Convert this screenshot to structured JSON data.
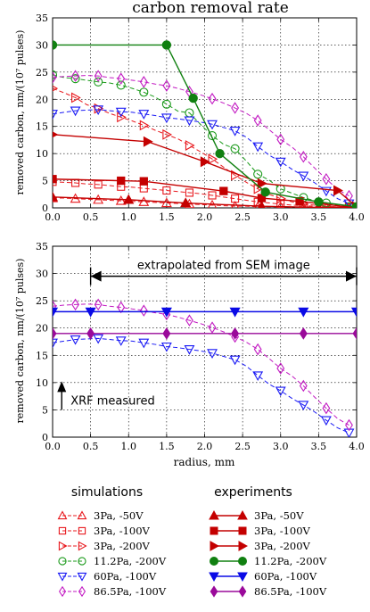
{
  "chart_data": [
    {
      "type": "line",
      "title": "carbon removal rate",
      "xlabel": "",
      "ylabel": "removed carbon, nm/(10⁷ pulses)",
      "xlim": [
        0,
        4.0
      ],
      "ylim": [
        0,
        35
      ],
      "xticks": [
        "0.0",
        "0.5",
        "1.0",
        "1.5",
        "2.0",
        "2.5",
        "3.0",
        "3.5",
        "4.0"
      ],
      "yticks": [
        "0",
        "5",
        "10",
        "15",
        "20",
        "25",
        "30",
        "35"
      ],
      "grid": true,
      "series": [
        {
          "name": "3Pa, -50V",
          "kind": "simulation",
          "color": "#e8191e",
          "marker": "triangle",
          "x": [
            0.0,
            0.15,
            0.3,
            0.45,
            0.6,
            0.75,
            0.9,
            1.05,
            1.2,
            1.35,
            1.5,
            1.65,
            1.8,
            1.95,
            2.1,
            2.25,
            2.4,
            2.55,
            2.7,
            2.85,
            3.0,
            3.15,
            3.3,
            3.45,
            3.6,
            3.75,
            3.9
          ],
          "y": [
            1.8,
            1.8,
            1.7,
            1.6,
            1.5,
            1.4,
            1.3,
            1.2,
            1.1,
            1.0,
            0.9,
            0.8,
            0.7,
            0.6,
            0.5,
            0.4,
            0.3,
            0.3,
            0.2,
            0.2,
            0.2,
            0.1,
            0.1,
            0.1,
            0.1,
            0.1,
            0.1
          ]
        },
        {
          "name": "3Pa, -100V",
          "kind": "simulation",
          "color": "#e8191e",
          "marker": "square",
          "x": [
            0.0,
            0.15,
            0.3,
            0.45,
            0.6,
            0.75,
            0.9,
            1.05,
            1.2,
            1.35,
            1.5,
            1.65,
            1.8,
            1.95,
            2.1,
            2.25,
            2.4,
            2.55,
            2.7,
            2.85,
            3.0,
            3.15,
            3.3,
            3.45,
            3.6,
            3.75,
            3.9
          ],
          "y": [
            4.8,
            4.7,
            4.6,
            4.4,
            4.3,
            4.1,
            3.9,
            3.8,
            3.6,
            3.4,
            3.2,
            3.0,
            2.8,
            2.6,
            2.3,
            2.0,
            1.7,
            1.4,
            1.1,
            0.9,
            0.7,
            0.5,
            0.4,
            0.3,
            0.2,
            0.2,
            0.1
          ]
        },
        {
          "name": "3Pa, -200V",
          "kind": "simulation",
          "color": "#e8191e",
          "marker": "triangle-right",
          "x": [
            0.0,
            0.15,
            0.3,
            0.45,
            0.6,
            0.75,
            0.9,
            1.05,
            1.2,
            1.35,
            1.5,
            1.65,
            1.8,
            1.95,
            2.1,
            2.25,
            2.4,
            2.55,
            2.7,
            2.85,
            3.0,
            3.15,
            3.3,
            3.45,
            3.6,
            3.75,
            3.9
          ],
          "y": [
            22.0,
            21.2,
            20.3,
            19.0,
            18.3,
            17.4,
            16.7,
            16.0,
            15.2,
            14.3,
            13.5,
            12.7,
            11.5,
            10.3,
            9.0,
            7.5,
            6.0,
            4.7,
            3.5,
            2.5,
            1.7,
            1.1,
            0.7,
            0.5,
            0.3,
            0.2,
            0.1
          ]
        },
        {
          "name": "11.2Pa, -200V",
          "kind": "simulation",
          "color": "#1a9a1a",
          "marker": "circle",
          "x": [
            0.0,
            0.15,
            0.3,
            0.45,
            0.6,
            0.75,
            0.9,
            1.05,
            1.2,
            1.35,
            1.5,
            1.65,
            1.8,
            1.95,
            2.1,
            2.25,
            2.4,
            2.55,
            2.7,
            2.85,
            3.0,
            3.15,
            3.3,
            3.45,
            3.6,
            3.75,
            3.9
          ],
          "y": [
            24.5,
            24.0,
            23.8,
            23.5,
            23.2,
            23.0,
            22.6,
            22.0,
            21.3,
            20.4,
            19.1,
            17.8,
            17.5,
            15.3,
            13.3,
            11.7,
            10.9,
            8.6,
            6.2,
            5.1,
            3.5,
            2.7,
            1.9,
            1.3,
            0.9,
            0.5,
            0.2
          ]
        },
        {
          "name": "60Pa, -100V",
          "kind": "simulation",
          "color": "#1a1af5",
          "marker": "triangle-down",
          "x": [
            0.0,
            0.15,
            0.3,
            0.45,
            0.6,
            0.75,
            0.9,
            1.05,
            1.2,
            1.35,
            1.5,
            1.65,
            1.8,
            1.95,
            2.1,
            2.25,
            2.4,
            2.55,
            2.7,
            2.85,
            3.0,
            3.15,
            3.3,
            3.45,
            3.6,
            3.75,
            3.9
          ],
          "y": [
            17.3,
            17.6,
            17.9,
            18.0,
            18.1,
            17.9,
            17.7,
            17.6,
            17.3,
            17.0,
            16.6,
            16.4,
            16.1,
            15.8,
            15.4,
            14.8,
            14.2,
            13.0,
            11.3,
            9.7,
            8.5,
            7.1,
            5.9,
            4.6,
            3.1,
            1.7,
            0.8
          ]
        },
        {
          "name": "86.5Pa, -100V",
          "kind": "simulation",
          "color": "#c21ac2",
          "marker": "diamond",
          "x": [
            0.0,
            0.15,
            0.3,
            0.45,
            0.6,
            0.75,
            0.9,
            1.05,
            1.2,
            1.35,
            1.5,
            1.65,
            1.8,
            1.95,
            2.1,
            2.25,
            2.4,
            2.55,
            2.7,
            2.85,
            3.0,
            3.15,
            3.3,
            3.45,
            3.6,
            3.75,
            3.9
          ],
          "y": [
            24.0,
            24.2,
            24.3,
            24.4,
            24.3,
            24.0,
            23.8,
            23.5,
            23.2,
            22.8,
            22.5,
            22.0,
            21.4,
            20.8,
            20.1,
            19.3,
            18.4,
            17.4,
            16.1,
            14.4,
            12.6,
            11.2,
            9.4,
            7.3,
            5.3,
            3.4,
            2.2
          ]
        }
      ],
      "experiments": [
        {
          "name": "3Pa, -50V",
          "color": "#c40000",
          "marker": "triangle",
          "x": [
            0.0,
            1.0,
            1.75,
            2.75,
            3.5,
            4.0
          ],
          "y": [
            2.0,
            1.5,
            0.9,
            0.3,
            0.1,
            0.0
          ]
        },
        {
          "name": "3Pa, -100V",
          "color": "#c40000",
          "marker": "square",
          "x": [
            0.0,
            0.9,
            1.2,
            2.25,
            2.75,
            3.25,
            4.0
          ],
          "y": [
            5.3,
            5.0,
            4.9,
            3.1,
            1.8,
            1.2,
            0.0
          ]
        },
        {
          "name": "3Pa, -200V",
          "color": "#c40000",
          "marker": "triangle-right",
          "x": [
            0.0,
            1.25,
            2.0,
            2.75,
            3.75,
            4.0
          ],
          "y": [
            13.5,
            12.2,
            8.5,
            4.5,
            3.2,
            0.2
          ]
        },
        {
          "name": "11.2Pa, -200V",
          "color": "#108010",
          "marker": "circle",
          "x": [
            0.0,
            1.5,
            1.85,
            2.2,
            2.8,
            3.5,
            4.0
          ],
          "y": [
            30.0,
            30.0,
            20.2,
            10.0,
            2.9,
            1.1,
            0.2
          ]
        }
      ]
    },
    {
      "type": "line",
      "title": "",
      "xlabel": "radius, mm",
      "ylabel": "removed carbon, nm/(10⁷ pulses)",
      "xlim": [
        0,
        4.0
      ],
      "ylim": [
        0,
        35
      ],
      "xticks": [
        "0.0",
        "0.5",
        "1.0",
        "1.5",
        "2.0",
        "2.5",
        "3.0",
        "3.5",
        "4.0"
      ],
      "yticks": [
        "0",
        "5",
        "10",
        "15",
        "20",
        "25",
        "30",
        "35"
      ],
      "grid": true,
      "annotations": [
        {
          "text": "extrapolated from SEM image",
          "x_from": 0.5,
          "x_to": 4.0,
          "y": 29.5
        },
        {
          "text": "XRF measured",
          "x": 0.12,
          "y": 5.0
        }
      ],
      "series": [
        {
          "name": "60Pa, -100V",
          "kind": "simulation",
          "color": "#1a1af5",
          "marker": "triangle-down",
          "x": [
            0.0,
            0.15,
            0.3,
            0.45,
            0.6,
            0.75,
            0.9,
            1.05,
            1.2,
            1.35,
            1.5,
            1.65,
            1.8,
            1.95,
            2.1,
            2.25,
            2.4,
            2.55,
            2.7,
            2.85,
            3.0,
            3.15,
            3.3,
            3.45,
            3.6,
            3.75,
            3.9
          ],
          "y": [
            17.3,
            17.6,
            17.9,
            18.0,
            18.1,
            17.9,
            17.7,
            17.6,
            17.3,
            17.0,
            16.6,
            16.4,
            16.1,
            15.8,
            15.4,
            14.8,
            14.2,
            13.0,
            11.3,
            9.7,
            8.5,
            7.1,
            5.9,
            4.6,
            3.1,
            1.7,
            0.8
          ]
        },
        {
          "name": "86.5Pa, -100V",
          "kind": "simulation",
          "color": "#c21ac2",
          "marker": "diamond",
          "x": [
            0.0,
            0.15,
            0.3,
            0.45,
            0.6,
            0.75,
            0.9,
            1.05,
            1.2,
            1.35,
            1.5,
            1.65,
            1.8,
            1.95,
            2.1,
            2.25,
            2.4,
            2.55,
            2.7,
            2.85,
            3.0,
            3.15,
            3.3,
            3.45,
            3.6,
            3.75,
            3.9
          ],
          "y": [
            24.0,
            24.2,
            24.3,
            24.4,
            24.3,
            24.0,
            23.8,
            23.5,
            23.2,
            22.8,
            22.5,
            22.0,
            21.4,
            20.8,
            20.1,
            19.3,
            18.4,
            17.4,
            16.1,
            14.4,
            12.6,
            11.2,
            9.4,
            7.3,
            5.3,
            3.4,
            2.2
          ]
        }
      ],
      "experiments": [
        {
          "name": "60Pa, -100V",
          "color": "#0a0ae6",
          "marker": "triangle-down",
          "x": [
            0.0,
            0.5,
            1.5,
            2.4,
            3.3,
            4.0
          ],
          "y": [
            23.0,
            23.0,
            23.0,
            23.0,
            23.0,
            23.0
          ]
        },
        {
          "name": "86.5Pa, -100V",
          "color": "#9a0a9a",
          "marker": "diamond",
          "x": [
            0.0,
            0.5,
            1.5,
            2.4,
            3.3,
            4.0
          ],
          "y": [
            19.0,
            19.0,
            19.0,
            19.0,
            19.0,
            19.0
          ]
        }
      ]
    }
  ],
  "legend": {
    "simulations_header": "simulations",
    "experiments_header": "experiments",
    "entries": [
      "3Pa, -50V",
      "3Pa, -100V",
      "3Pa, -200V",
      "11.2Pa, -200V",
      "60Pa, -100V",
      "86.5Pa, -100V"
    ],
    "simulation_colors": [
      "#e8191e",
      "#e8191e",
      "#e8191e",
      "#1a9a1a",
      "#1a1af5",
      "#c21ac2"
    ],
    "experiment_colors": [
      "#c40000",
      "#c40000",
      "#c40000",
      "#108010",
      "#0a0ae6",
      "#9a0a9a"
    ],
    "markers": [
      "triangle",
      "square",
      "triangle-right",
      "circle",
      "triangle-down",
      "diamond"
    ]
  }
}
